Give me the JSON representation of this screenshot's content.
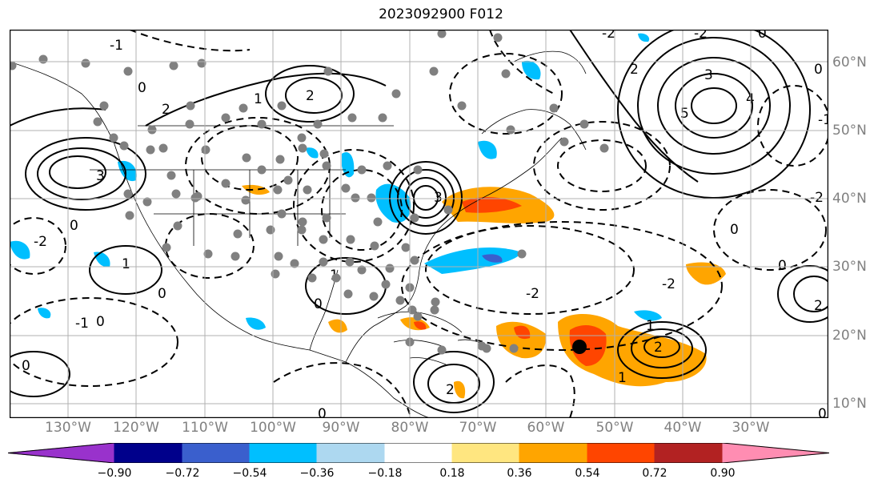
{
  "title": "2023092900 F012",
  "lat_labels": [
    "60°N",
    "50°N",
    "40°N",
    "30°N",
    "20°N",
    "10°N"
  ],
  "lon_labels": [
    "130°W",
    "120°W",
    "110°W",
    "100°W",
    "90°W",
    "80°W",
    "70°W",
    "60°W",
    "50°W",
    "40°W",
    "30°W"
  ],
  "contour_labels": [
    "-2",
    "-1",
    "0",
    "1",
    "2",
    "3",
    "4",
    "5"
  ],
  "colorbar": {
    "ticks": [
      "−0.90",
      "−0.72",
      "−0.54",
      "−0.36",
      "−0.18",
      "0.18",
      "0.36",
      "0.54",
      "0.72",
      "0.90"
    ],
    "colors": [
      "#9932CC",
      "#00008B",
      "#3A5FCD",
      "#00BFFF",
      "#ADD8F0",
      "#FFFFFF",
      "#FFE680",
      "#FFA500",
      "#FF4500",
      "#B22222",
      "#FF8DB2"
    ]
  }
}
